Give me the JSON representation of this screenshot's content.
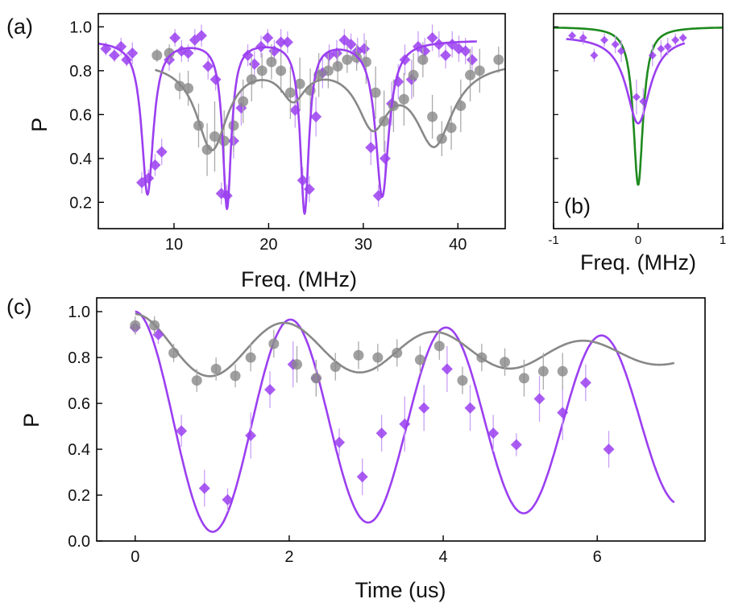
{
  "colors": {
    "purple": "#9B3FF0",
    "gray": "#888888",
    "green": "#1E8A1E",
    "axis": "#000000"
  },
  "chart_data": [
    {
      "id": "a",
      "panel_label": "(a)",
      "type": "scatter",
      "xlabel": "Freq. (MHz)",
      "ylabel": "P",
      "xlim": [
        2,
        45
      ],
      "ylim": [
        0.08,
        1.06
      ],
      "xticks": [
        10,
        20,
        30,
        40
      ],
      "yticks": [
        0.2,
        0.4,
        0.6,
        0.8,
        1.0
      ],
      "xtick_labels": [
        "10",
        "20",
        "30",
        "40"
      ],
      "ytick_labels": [
        "0.2",
        "0.4",
        "0.6",
        "0.8",
        "1.0"
      ],
      "series": [
        {
          "name": "purple data",
          "marker": "diamond",
          "color": "purple",
          "x": [
            2.8,
            3.7,
            4.4,
            5.0,
            5.6,
            6.6,
            7.3,
            8.0,
            8.7,
            9.5,
            10.1,
            10.8,
            11.5,
            12.2,
            12.9,
            13.6,
            14.4,
            15.0,
            15.6,
            16.3,
            17.1,
            17.8,
            18.5,
            19.2,
            19.9,
            20.6,
            21.3,
            22.0,
            22.8,
            23.6,
            24.3,
            25.0,
            25.7,
            26.4,
            27.2,
            28.0,
            28.7,
            29.4,
            30.1,
            30.8,
            31.6,
            32.3,
            33.0,
            33.7,
            34.4,
            35.1,
            35.8,
            36.5,
            37.3,
            38.0,
            38.7,
            39.4,
            40.1,
            40.8,
            41.5
          ],
          "y": [
            0.9,
            0.87,
            0.91,
            0.85,
            0.88,
            0.29,
            0.31,
            0.37,
            0.43,
            0.85,
            0.95,
            0.89,
            0.88,
            0.94,
            0.96,
            0.82,
            0.76,
            0.24,
            0.23,
            0.48,
            0.63,
            0.87,
            0.83,
            0.91,
            0.95,
            0.89,
            0.93,
            0.93,
            0.62,
            0.3,
            0.26,
            0.59,
            0.79,
            0.87,
            0.88,
            0.94,
            0.92,
            0.89,
            0.9,
            0.45,
            0.23,
            0.4,
            0.65,
            0.75,
            0.85,
            0.76,
            0.91,
            0.89,
            0.95,
            0.92,
            0.87,
            0.92,
            0.9,
            0.89,
            0.85
          ],
          "err": [
            0.03,
            0.03,
            0.04,
            0.03,
            0.05,
            0.05,
            0.04,
            0.05,
            0.06,
            0.05,
            0.04,
            0.05,
            0.04,
            0.05,
            0.05,
            0.06,
            0.05,
            0.05,
            0.05,
            0.08,
            0.08,
            0.05,
            0.06,
            0.05,
            0.04,
            0.05,
            0.06,
            0.05,
            0.08,
            0.06,
            0.06,
            0.09,
            0.07,
            0.05,
            0.06,
            0.05,
            0.05,
            0.06,
            0.07,
            0.08,
            0.05,
            0.08,
            0.1,
            0.08,
            0.07,
            0.09,
            0.07,
            0.06,
            0.06,
            0.06,
            0.06,
            0.06,
            0.06,
            0.06,
            0.06
          ]
        },
        {
          "name": "gray data",
          "marker": "circle",
          "color": "gray",
          "x": [
            8.2,
            9.5,
            10.6,
            11.5,
            12.6,
            13.5,
            14.3,
            15.3,
            16.3,
            17.3,
            18.2,
            19.3,
            20.3,
            21.3,
            22.3,
            23.3,
            24.4,
            25.3,
            26.3,
            27.3,
            28.3,
            29.3,
            30.3,
            31.3,
            32.2,
            33.2,
            34.3,
            35.3,
            36.3,
            37.3,
            38.3,
            39.3,
            40.3,
            41.3,
            42.3,
            44.3
          ],
          "y": [
            0.87,
            0.88,
            0.73,
            0.72,
            0.55,
            0.44,
            0.5,
            0.48,
            0.55,
            0.66,
            0.76,
            0.8,
            0.84,
            0.8,
            0.7,
            0.74,
            0.71,
            0.78,
            0.8,
            0.82,
            0.85,
            0.86,
            0.84,
            0.7,
            0.57,
            0.64,
            0.67,
            0.78,
            0.85,
            0.59,
            0.49,
            0.54,
            0.64,
            0.78,
            0.8,
            0.85
          ],
          "err": [
            0.03,
            0.04,
            0.06,
            0.08,
            0.1,
            0.12,
            0.16,
            0.14,
            0.12,
            0.1,
            0.1,
            0.08,
            0.08,
            0.1,
            0.12,
            0.12,
            0.1,
            0.1,
            0.08,
            0.08,
            0.06,
            0.06,
            0.1,
            0.12,
            0.14,
            0.12,
            0.12,
            0.1,
            0.08,
            0.1,
            0.08,
            0.1,
            0.12,
            0.12,
            0.1,
            0.06
          ]
        },
        {
          "name": "purple fit",
          "type": "line",
          "color": "purple",
          "baseline": 0.94,
          "dips": [
            {
              "center": 7.2,
              "width": 0.75,
              "depth": 0.7
            },
            {
              "center": 15.6,
              "width": 0.55,
              "depth": 0.76
            },
            {
              "center": 23.8,
              "width": 0.55,
              "depth": 0.78
            },
            {
              "center": 32.0,
              "width": 0.85,
              "depth": 0.71
            }
          ],
          "x_start": 2.0,
          "x_end": 42.0
        },
        {
          "name": "gray fit",
          "type": "line",
          "color": "gray",
          "baseline": 0.85,
          "dips": [
            {
              "center": 14.0,
              "width": 2.0,
              "depth": 0.4
            },
            {
              "center": 22.6,
              "width": 1.6,
              "depth": 0.15
            },
            {
              "center": 31.0,
              "width": 2.0,
              "depth": 0.27
            },
            {
              "center": 37.5,
              "width": 2.4,
              "depth": 0.37
            }
          ],
          "x_start": 8.0,
          "x_end": 45.0
        }
      ]
    },
    {
      "id": "b",
      "panel_label": "(b)",
      "type": "scatter",
      "xlabel": "Freq. (MHz)",
      "ylabel": "",
      "xlim": [
        -1,
        1
      ],
      "ylim": [
        0.08,
        1.06
      ],
      "xticks": [
        -1,
        0,
        1
      ],
      "xtick_labels": [
        "-1",
        "0",
        "1"
      ],
      "series": [
        {
          "name": "green fit",
          "type": "line",
          "color": "green",
          "baseline": 1.0,
          "dips": [
            {
              "center": 0.0,
              "width": 0.07,
              "depth": 0.72
            }
          ],
          "x_start": -1.0,
          "x_end": 1.0
        },
        {
          "name": "purple fit",
          "type": "line",
          "color": "purple",
          "baseline": 0.96,
          "dips": [
            {
              "center": 0.0,
              "width": 0.17,
              "depth": 0.4
            }
          ],
          "x_start": -0.85,
          "x_end": 0.55
        },
        {
          "name": "purple data",
          "marker": "diamond",
          "color": "purple",
          "x": [
            -0.78,
            -0.65,
            -0.52,
            -0.4,
            -0.27,
            -0.2,
            -0.02,
            0.06,
            0.17,
            0.27,
            0.35,
            0.44,
            0.53
          ],
          "y": [
            0.96,
            0.95,
            0.87,
            0.94,
            0.92,
            0.89,
            0.68,
            0.66,
            0.87,
            0.9,
            0.91,
            0.94,
            0.95
          ],
          "err": [
            0.02,
            0.03,
            0.03,
            0.03,
            0.04,
            0.05,
            0.08,
            0.06,
            0.05,
            0.04,
            0.04,
            0.03,
            0.02
          ]
        }
      ]
    },
    {
      "id": "c",
      "panel_label": "(c)",
      "type": "scatter",
      "xlabel": "Time (us)",
      "ylabel": "P",
      "xlim": [
        -0.5,
        7.4
      ],
      "ylim": [
        0.0,
        1.06
      ],
      "xticks": [
        0,
        2,
        4,
        6
      ],
      "yticks": [
        0.0,
        0.2,
        0.4,
        0.6,
        0.8,
        1.0
      ],
      "xtick_labels": [
        "0",
        "2",
        "4",
        "6"
      ],
      "ytick_labels": [
        "0.0",
        "0.2",
        "0.4",
        "0.6",
        "0.8",
        "1.0"
      ],
      "series": [
        {
          "name": "purple oscillation",
          "type": "line",
          "color": "purple",
          "model": "cos",
          "period": 2.02,
          "amp_start": 0.49,
          "amp_end": 0.36,
          "mean_start": 0.51,
          "mean_end": 0.52,
          "x_start": 0.0,
          "x_end": 7.0
        },
        {
          "name": "gray oscillation",
          "type": "line",
          "color": "gray",
          "model": "cos",
          "period": 1.95,
          "amp_start": 0.14,
          "amp_end": 0.04,
          "mean_start": 0.85,
          "mean_end": 0.81,
          "x_start": 0.0,
          "x_end": 7.0
        },
        {
          "name": "purple data",
          "marker": "diamond",
          "color": "purple",
          "x": [
            0.0,
            0.3,
            0.6,
            0.9,
            1.2,
            1.5,
            1.75,
            2.05,
            2.35,
            2.65,
            2.95,
            3.2,
            3.5,
            3.75,
            4.05,
            4.35,
            4.65,
            4.95,
            5.25,
            5.55,
            5.85,
            6.15
          ],
          "y": [
            0.93,
            0.9,
            0.48,
            0.23,
            0.18,
            0.46,
            0.66,
            0.77,
            0.71,
            0.43,
            0.28,
            0.47,
            0.51,
            0.58,
            0.75,
            0.58,
            0.47,
            0.42,
            0.62,
            0.56,
            0.69,
            0.4
          ],
          "err": [
            0.03,
            0.04,
            0.07,
            0.08,
            0.05,
            0.1,
            0.08,
            0.1,
            0.08,
            0.06,
            0.08,
            0.08,
            0.12,
            0.1,
            0.1,
            0.1,
            0.08,
            0.05,
            0.1,
            0.12,
            0.08,
            0.08
          ]
        },
        {
          "name": "gray data",
          "marker": "circle",
          "color": "gray",
          "x": [
            0.0,
            0.25,
            0.5,
            0.8,
            1.05,
            1.3,
            1.5,
            1.8,
            2.1,
            2.35,
            2.6,
            2.9,
            3.15,
            3.4,
            3.7,
            3.95,
            4.25,
            4.5,
            4.8,
            5.05,
            5.3,
            5.55
          ],
          "y": [
            0.94,
            0.94,
            0.82,
            0.7,
            0.75,
            0.72,
            0.8,
            0.86,
            0.77,
            0.71,
            0.76,
            0.81,
            0.8,
            0.82,
            0.79,
            0.85,
            0.7,
            0.8,
            0.78,
            0.71,
            0.74,
            0.74
          ],
          "err": [
            0.04,
            0.04,
            0.04,
            0.05,
            0.05,
            0.05,
            0.06,
            0.06,
            0.08,
            0.08,
            0.06,
            0.06,
            0.06,
            0.06,
            0.06,
            0.06,
            0.06,
            0.06,
            0.06,
            0.08,
            0.08,
            0.08
          ]
        }
      ]
    }
  ]
}
